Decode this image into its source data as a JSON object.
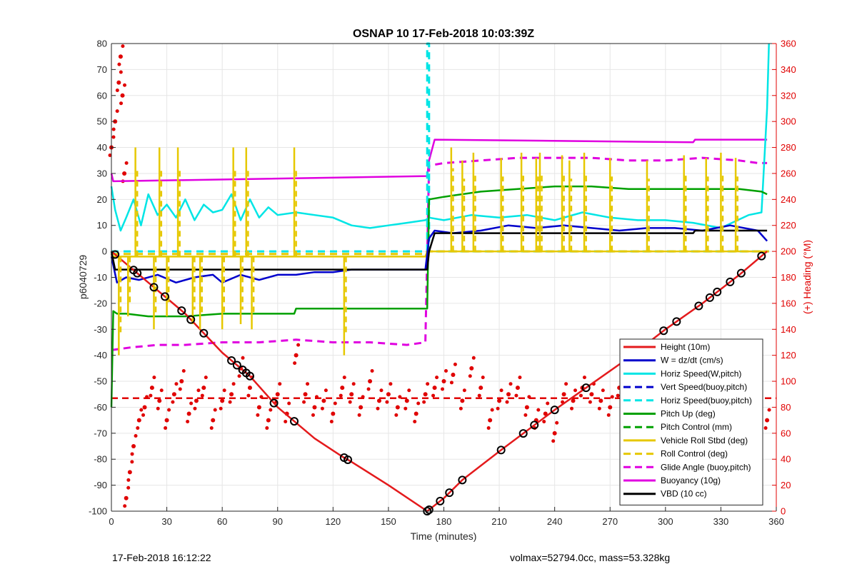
{
  "footer": {
    "left": "17-Feb-2018 16:12:22",
    "right": "volmax=52794.0cc, mass=53.328kg"
  },
  "chart_data": {
    "type": "line",
    "title": "OSNAP 10 17-Feb-2018 10:03:39Z",
    "xlabel": "Time (minutes)",
    "ylabel": "p6040729",
    "y2label": "(+) Heading (°M)",
    "xlim": [
      0,
      360
    ],
    "ylim": [
      -100,
      80
    ],
    "y2lim": [
      0,
      360
    ],
    "xticks": [
      0,
      30,
      60,
      90,
      120,
      150,
      180,
      210,
      240,
      270,
      300,
      330,
      360
    ],
    "yticks": [
      -100,
      -90,
      -80,
      -70,
      -60,
      -50,
      -40,
      -30,
      -20,
      -10,
      0,
      10,
      20,
      30,
      40,
      50,
      60,
      70,
      80
    ],
    "y2ticks": [
      0,
      20,
      40,
      60,
      80,
      100,
      120,
      140,
      160,
      180,
      200,
      220,
      240,
      260,
      280,
      300,
      320,
      340,
      360
    ],
    "grid": true,
    "legend_position": "bottom-right",
    "colors": {
      "height": "#e41a1c",
      "w": "#0000cc",
      "horiz": "#00e5e5",
      "pitch": "#00a000",
      "roll": "#e6c800",
      "glide": "#e000e0",
      "buoy": "#e000e0",
      "vbd": "#000000",
      "heading": "#e00000"
    },
    "series": [
      {
        "name": "Height (10m)",
        "color": "#e41a1c",
        "style": "solid",
        "x": [
          0,
          10,
          20,
          40,
          60,
          75,
          90,
          110,
          125,
          130,
          150,
          171,
          180,
          190,
          210,
          240,
          260,
          280,
          300,
          320,
          340,
          355
        ],
        "y": [
          0,
          -6,
          -12,
          -24,
          -39,
          -48,
          -60,
          -72,
          -79,
          -81,
          -90,
          -100,
          -95,
          -88,
          -77,
          -61,
          -51,
          -41,
          -30,
          -20,
          -9,
          0
        ]
      },
      {
        "name": "W = dz/dt (cm/s)",
        "color": "#0000cc",
        "style": "solid",
        "x": [
          0,
          3,
          8,
          15,
          25,
          35,
          45,
          55,
          60,
          70,
          80,
          90,
          100,
          110,
          120,
          130,
          140,
          150,
          160,
          170,
          172,
          175,
          185,
          200,
          215,
          230,
          245,
          260,
          275,
          290,
          305,
          320,
          335,
          350,
          355
        ],
        "y": [
          -2,
          -12,
          -10,
          -11,
          -9,
          -12,
          -10,
          -9,
          -12,
          -9,
          -11,
          -9,
          -9,
          -8,
          -8,
          -7,
          -7,
          -7,
          -7,
          -7,
          5,
          8,
          7,
          8,
          10,
          9,
          10,
          9,
          8,
          9,
          9,
          8,
          10,
          8,
          4
        ]
      },
      {
        "name": "Horiz Speed(W,pitch)",
        "color": "#00e5e5",
        "style": "solid",
        "x": [
          0,
          2,
          5,
          8,
          12,
          16,
          20,
          25,
          30,
          35,
          40,
          45,
          50,
          55,
          60,
          65,
          70,
          75,
          80,
          85,
          90,
          100,
          110,
          120,
          130,
          140,
          150,
          160,
          170,
          172,
          180,
          195,
          210,
          225,
          240,
          255,
          270,
          285,
          300,
          315,
          330,
          345,
          352,
          355,
          356
        ],
        "y": [
          25,
          16,
          8,
          13,
          20,
          10,
          22,
          14,
          18,
          13,
          20,
          12,
          18,
          15,
          16,
          22,
          12,
          20,
          13,
          17,
          14,
          15,
          14,
          13,
          10,
          9,
          10,
          11,
          12,
          13,
          12,
          14,
          13,
          14,
          12,
          15,
          13,
          12,
          12,
          11,
          9,
          14,
          15,
          55,
          80
        ]
      },
      {
        "name": "Vert Speed(buoy,pitch)",
        "color": "#0000cc",
        "style": "dashed",
        "x": [],
        "y": []
      },
      {
        "name": "Horiz Speed(buoy,pitch)",
        "color": "#00e5e5",
        "style": "dashed",
        "x": [
          0,
          170,
          171,
          171,
          172,
          172,
          356
        ],
        "y": [
          0,
          0,
          0,
          80,
          80,
          0,
          0
        ]
      },
      {
        "name": "Pitch Up (deg)",
        "color": "#00a000",
        "style": "solid",
        "x": [
          0,
          1,
          3,
          8,
          20,
          40,
          60,
          80,
          99,
          100,
          130,
          150,
          170,
          171,
          172,
          180,
          200,
          220,
          240,
          260,
          280,
          300,
          320,
          340,
          352,
          355
        ],
        "y": [
          -60,
          -23,
          -24,
          -24,
          -25,
          -25,
          -24,
          -24,
          -24,
          -22,
          -22,
          -22,
          -22,
          -22,
          20,
          21,
          23,
          24,
          25,
          25,
          24,
          24,
          24,
          24,
          23,
          22
        ]
      },
      {
        "name": "Pitch Control (mm)",
        "color": "#00a000",
        "style": "dashed",
        "x": [],
        "y": []
      },
      {
        "name": "Vehicle Roll Stbd (deg)",
        "color": "#e6c800",
        "style": "solid",
        "x": [
          0,
          170,
          171,
          356
        ],
        "y": [
          -2,
          -2,
          0,
          0
        ]
      },
      {
        "name": "Roll Control (deg)",
        "color": "#e6c800",
        "style": "dashed",
        "x": [
          0,
          170,
          171,
          356
        ],
        "y": [
          -1,
          -1,
          0,
          0
        ]
      },
      {
        "name": "Glide Angle (buoy,pitch)",
        "color": "#e000e0",
        "style": "dashed",
        "x": [
          0,
          10,
          25,
          40,
          60,
          80,
          100,
          120,
          140,
          160,
          170,
          172,
          180,
          200,
          220,
          240,
          260,
          280,
          300,
          320,
          340,
          350,
          355
        ],
        "y": [
          -38,
          -37,
          -36,
          -36,
          -35,
          -35,
          -34,
          -35,
          -35,
          -36,
          -35,
          33,
          34,
          35,
          36,
          36,
          36,
          35,
          35,
          36,
          35,
          34,
          34
        ]
      },
      {
        "name": "Buoyancy (10g)",
        "color": "#e000e0",
        "style": "solid",
        "x": [
          0,
          1,
          171,
          172,
          175,
          315,
          316,
          355
        ],
        "y": [
          30,
          27,
          29,
          35,
          43,
          42,
          43,
          43
        ]
      },
      {
        "name": "VBD (10 cc)",
        "color": "#000000",
        "style": "solid",
        "x": [
          0,
          2,
          171,
          172,
          175,
          315,
          316,
          355
        ],
        "y": [
          0,
          -7,
          -7,
          0,
          7,
          7,
          8,
          8
        ]
      }
    ],
    "roll_spikes": {
      "series": "Vehicle Roll Stbd (deg)",
      "x": [
        4,
        9,
        13,
        23,
        26,
        30,
        36,
        44,
        48,
        60,
        66,
        70,
        73,
        76,
        99,
        126,
        184,
        190,
        196,
        211,
        222,
        230,
        232,
        244,
        248,
        256,
        270,
        290,
        310,
        322,
        330,
        338
      ],
      "y": [
        -40,
        -25,
        40,
        -30,
        40,
        -25,
        40,
        -28,
        -30,
        -30,
        40,
        -28,
        40,
        -30,
        40,
        -40,
        40,
        35,
        38,
        36,
        38,
        36,
        38,
        37,
        35,
        38,
        36,
        35,
        37,
        36,
        38,
        36
      ]
    },
    "heading": {
      "name": "(+) Heading (°M)",
      "axis": "right",
      "style": "dots",
      "color": "#e00000",
      "mean": 87,
      "x": [
        0,
        2,
        4,
        5,
        6,
        7,
        8,
        10,
        12,
        15,
        18,
        22,
        26,
        30,
        34,
        38,
        42,
        46,
        50,
        55,
        60,
        65,
        70,
        75,
        80,
        85,
        90,
        95,
        100,
        105,
        110,
        115,
        120,
        125,
        130,
        135,
        140,
        145,
        150,
        155,
        160,
        165,
        170,
        175,
        180,
        185,
        190,
        195,
        200,
        205,
        210,
        215,
        220,
        225,
        230,
        235,
        240,
        245,
        250,
        255,
        260,
        265,
        270,
        275,
        280,
        285,
        290,
        295,
        300,
        305,
        310,
        315,
        320,
        325,
        330,
        335,
        340,
        345,
        350,
        355
      ],
      "y": [
        280,
        300,
        330,
        350,
        320,
        260,
        10,
        30,
        50,
        70,
        80,
        95,
        85,
        70,
        90,
        100,
        75,
        85,
        95,
        70,
        85,
        90,
        110,
        95,
        80,
        70,
        90,
        75,
        120,
        90,
        80,
        85,
        75,
        95,
        90,
        80,
        100,
        85,
        90,
        80,
        85,
        75,
        90,
        95,
        100,
        105,
        85,
        110,
        95,
        70,
        85,
        90,
        95,
        80,
        70,
        75,
        60,
        90,
        85,
        95,
        90,
        85,
        80,
        95,
        80,
        90,
        75,
        85,
        80,
        90,
        95,
        80,
        85,
        90,
        75,
        80,
        90,
        85,
        95,
        70
      ]
    },
    "height_markers": {
      "x": [
        2,
        12,
        14,
        23,
        29,
        38,
        43,
        50,
        65,
        68,
        71,
        73,
        75,
        88,
        99,
        126,
        128,
        171,
        172,
        178,
        183,
        190,
        211,
        223,
        229,
        240,
        257,
        299,
        306,
        318,
        324,
        328,
        335,
        341,
        352
      ]
    }
  }
}
